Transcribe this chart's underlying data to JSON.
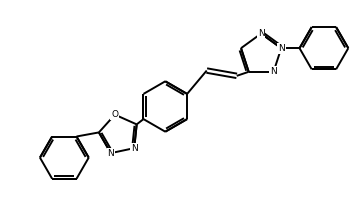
{
  "background_color": "#ffffff",
  "line_color": "#000000",
  "line_width": 1.4,
  "font_size": 6.5,
  "figsize": [
    3.55,
    2.13
  ],
  "dpi": 100,
  "xlim": [
    0,
    10
  ],
  "ylim": [
    0,
    6
  ]
}
